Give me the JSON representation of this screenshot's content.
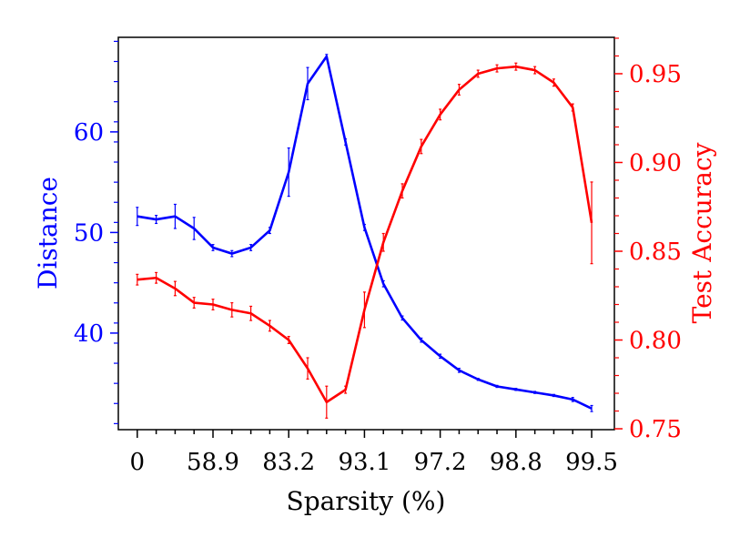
{
  "chart_data": {
    "type": "line",
    "title": "",
    "xlabel": "Sparsity (%)",
    "x": [
      0,
      1,
      2,
      3,
      4,
      5,
      6,
      7,
      8,
      9,
      10,
      11,
      12,
      13,
      14,
      15,
      16,
      17,
      18,
      19,
      20,
      21,
      22,
      23,
      24
    ],
    "x_tick_positions": [
      0,
      4,
      8,
      12,
      16,
      20,
      24
    ],
    "x_tick_labels": [
      "0",
      "58.9",
      "83.2",
      "93.1",
      "97.2",
      "98.8",
      "99.5"
    ],
    "xlim": [
      -1,
      25.2
    ],
    "series": [
      {
        "name": "Distance",
        "axis": "left",
        "color": "#0000ff",
        "values": [
          51.6,
          51.3,
          51.6,
          50.4,
          48.5,
          47.9,
          48.5,
          50.2,
          56.0,
          64.8,
          67.5,
          59.0,
          50.5,
          44.9,
          41.5,
          39.3,
          37.7,
          36.3,
          35.4,
          34.7,
          34.4,
          34.1,
          33.8,
          33.4,
          32.5
        ],
        "errors": [
          0.9,
          0.4,
          1.2,
          1.1,
          0.3,
          0.3,
          0.3,
          0.3,
          2.4,
          1.6,
          0.2,
          0.3,
          0.3,
          0.3,
          0.2,
          0.2,
          0.2,
          0.2,
          0.1,
          0.1,
          0.1,
          0.1,
          0.1,
          0.2,
          0.3
        ]
      },
      {
        "name": "Test Accuracy",
        "axis": "right",
        "color": "#ff0000",
        "values": [
          0.834,
          0.835,
          0.829,
          0.821,
          0.82,
          0.817,
          0.815,
          0.808,
          0.8,
          0.784,
          0.765,
          0.772,
          0.817,
          0.855,
          0.884,
          0.909,
          0.927,
          0.941,
          0.95,
          0.953,
          0.954,
          0.952,
          0.945,
          0.931,
          0.866
        ],
        "errors": [
          0.003,
          0.003,
          0.004,
          0.003,
          0.003,
          0.004,
          0.004,
          0.003,
          0.002,
          0.006,
          0.009,
          0.002,
          0.01,
          0.005,
          0.004,
          0.004,
          0.003,
          0.003,
          0.002,
          0.002,
          0.002,
          0.002,
          0.002,
          0.002,
          0.023
        ]
      }
    ],
    "left_axis": {
      "label": "Distance",
      "color": "#0000ff",
      "ylim": [
        30.4,
        69.4
      ],
      "ticks": [
        40,
        50,
        60
      ],
      "tick_labels": [
        "40",
        "50",
        "60"
      ]
    },
    "right_axis": {
      "label": "Test Accuracy",
      "color": "#ff0000",
      "ylim": [
        0.7495,
        0.9705
      ],
      "ticks": [
        0.75,
        0.8,
        0.85,
        0.9,
        0.95
      ],
      "tick_labels": [
        "0.75",
        "0.80",
        "0.85",
        "0.90",
        "0.95"
      ]
    },
    "grid": false,
    "legend": "none"
  }
}
